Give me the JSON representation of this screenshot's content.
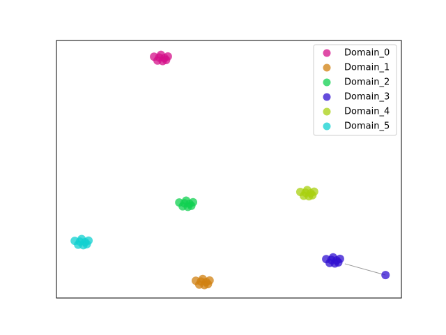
{
  "chart_data": {
    "type": "scatter",
    "xlim": [
      0,
      10
    ],
    "ylim": [
      0,
      10
    ],
    "legend": "upper right",
    "series": [
      {
        "name": "Domain_0",
        "color": "#d4108a",
        "x": [
          2.83,
          2.93,
          3.03,
          3.13,
          3.23,
          3.08,
          2.98,
          3.18
        ],
        "values": [
          9.37,
          9.22,
          9.44,
          9.32,
          9.38,
          9.2,
          9.34,
          9.24
        ]
      },
      {
        "name": "Domain_1",
        "color": "#d08010",
        "x": [
          4.04,
          4.14,
          4.24,
          4.34,
          4.44,
          4.29,
          4.19,
          4.39
        ],
        "values": [
          0.67,
          0.52,
          0.74,
          0.62,
          0.68,
          0.5,
          0.64,
          0.54
        ]
      },
      {
        "name": "Domain_2",
        "color": "#10d050",
        "x": [
          3.56,
          3.66,
          3.76,
          3.86,
          3.96,
          3.81,
          3.71,
          3.91
        ],
        "values": [
          3.71,
          3.56,
          3.78,
          3.66,
          3.72,
          3.54,
          3.68,
          3.58
        ]
      },
      {
        "name": "Domain_3",
        "color": "#3010d0",
        "x": [
          7.82,
          7.92,
          8.02,
          8.12,
          8.22,
          8.07,
          7.97,
          8.17,
          9.54
        ],
        "values": [
          1.51,
          1.36,
          1.58,
          1.46,
          1.52,
          1.34,
          1.48,
          1.38,
          0.89
        ]
      },
      {
        "name": "Domain_4",
        "color": "#a8d010",
        "x": [
          7.07,
          7.17,
          7.27,
          7.37,
          7.47,
          7.32,
          7.22,
          7.42
        ],
        "values": [
          4.12,
          3.97,
          4.19,
          4.07,
          4.13,
          3.95,
          4.09,
          3.99
        ]
      },
      {
        "name": "Domain_5",
        "color": "#10d0d0",
        "x": [
          0.53,
          0.63,
          0.73,
          0.83,
          0.93,
          0.78,
          0.68,
          0.88
        ],
        "values": [
          2.22,
          2.07,
          2.29,
          2.17,
          2.23,
          2.05,
          2.19,
          2.09
        ]
      }
    ],
    "segments": [
      {
        "color": "#999999",
        "x": [
          8.36,
          9.54
        ],
        "values": [
          1.33,
          0.89
        ]
      }
    ]
  }
}
